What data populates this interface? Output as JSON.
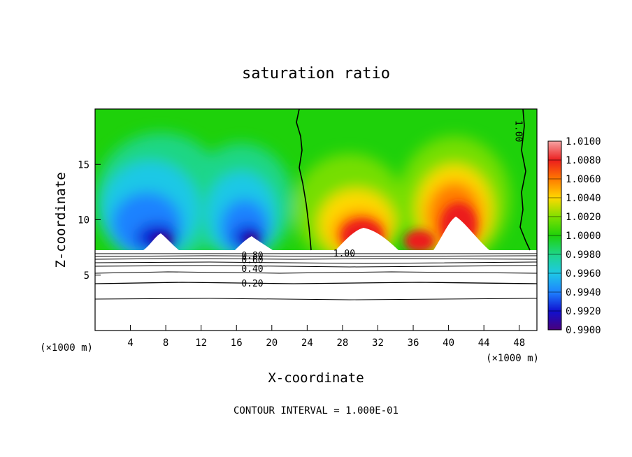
{
  "chart_data": {
    "type": "heatmap",
    "title": "saturation ratio",
    "xlabel": "X-coordinate",
    "ylabel": "Z-coordinate",
    "x_unit_left": "(×1000 m)",
    "x_unit_right": "(×1000 m)",
    "xlim": [
      0,
      50
    ],
    "ylim": [
      0,
      20
    ],
    "x_ticks": [
      "4",
      "8",
      "12",
      "16",
      "20",
      "24",
      "28",
      "32",
      "36",
      "40",
      "44",
      "48"
    ],
    "y_ticks": [
      "5",
      "10",
      "15"
    ],
    "grid": false,
    "footer": "CONTOUR INTERVAL = 1.000E-01",
    "colorbar": {
      "levels": [
        "1.0100",
        "1.0080",
        "1.0060",
        "1.0040",
        "1.0020",
        "1.0000",
        "0.9980",
        "0.9960",
        "0.9940",
        "0.9920",
        "0.9900"
      ],
      "colors": [
        "#f6a3a3",
        "#ec1d1d",
        "#ff7a00",
        "#ffd900",
        "#7fe000",
        "#1ed10a",
        "#1ed68a",
        "#1ec8e6",
        "#1e82ff",
        "#1010d0",
        "#4a007a"
      ]
    },
    "contour_labels": [
      {
        "text": "1.00",
        "x": 28.2,
        "z": 7.0
      },
      {
        "text": "1.00",
        "x": 48.0,
        "z": 18.0
      },
      {
        "text": "0.80",
        "x": 17.8,
        "z": 6.8
      },
      {
        "text": "0.60",
        "x": 17.8,
        "z": 6.4
      },
      {
        "text": "0.40",
        "x": 17.8,
        "z": 5.6
      },
      {
        "text": "0.20",
        "x": 17.8,
        "z": 4.3
      }
    ],
    "surface_z": 7.0
  },
  "colors": {
    "background": "#ffffff",
    "text": "#000000"
  }
}
